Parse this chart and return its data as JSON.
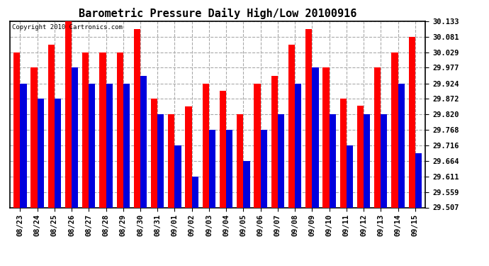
{
  "title": "Barometric Pressure Daily High/Low 20100916",
  "copyright": "Copyright 2010 Cartronics.com",
  "dates": [
    "08/23",
    "08/24",
    "08/25",
    "08/26",
    "08/27",
    "08/28",
    "08/29",
    "08/30",
    "08/31",
    "09/01",
    "09/02",
    "09/03",
    "09/04",
    "09/05",
    "09/06",
    "09/07",
    "09/08",
    "09/09",
    "09/10",
    "09/11",
    "09/12",
    "09/13",
    "09/14",
    "09/15"
  ],
  "highs": [
    30.029,
    29.977,
    30.055,
    30.133,
    30.029,
    30.029,
    30.029,
    30.107,
    29.872,
    29.82,
    29.846,
    29.924,
    29.9,
    29.82,
    29.924,
    29.95,
    30.055,
    30.107,
    29.977,
    29.872,
    29.85,
    29.977,
    30.029,
    30.081
  ],
  "lows": [
    29.924,
    29.872,
    29.872,
    29.977,
    29.924,
    29.924,
    29.924,
    29.95,
    29.82,
    29.716,
    29.611,
    29.768,
    29.768,
    29.664,
    29.768,
    29.82,
    29.924,
    29.977,
    29.82,
    29.716,
    29.82,
    29.82,
    29.924,
    29.69
  ],
  "high_color": "#FF0000",
  "low_color": "#0000DD",
  "bg_color": "#FFFFFF",
  "plot_bg_color": "#FFFFFF",
  "grid_color": "#AAAAAA",
  "ymin": 29.507,
  "ymax": 30.133,
  "yticks": [
    30.133,
    30.081,
    30.029,
    29.977,
    29.924,
    29.872,
    29.82,
    29.768,
    29.716,
    29.664,
    29.611,
    29.559,
    29.507
  ],
  "bar_width": 0.38,
  "title_fontsize": 11,
  "tick_fontsize": 7.5,
  "copyright_fontsize": 6.5
}
